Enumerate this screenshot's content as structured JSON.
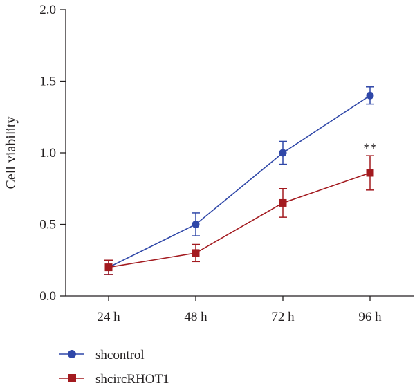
{
  "chart_data": {
    "type": "line",
    "title": "",
    "xlabel": "",
    "ylabel": "Cell viability",
    "categories": [
      "24 h",
      "48 h",
      "72 h",
      "96 h"
    ],
    "ylim": [
      0,
      2.0
    ],
    "yticks": [
      0.0,
      0.5,
      1.0,
      1.5,
      2.0
    ],
    "ytick_labels": [
      "0.0",
      "0.5",
      "1.0",
      "1.5",
      "2.0"
    ],
    "grid": false,
    "legend_position": "bottom-left",
    "series": [
      {
        "name": "shcontrol",
        "marker": "circle",
        "color": "#2f47a8",
        "values": [
          0.2,
          0.5,
          1.0,
          1.4
        ],
        "errors": [
          0.05,
          0.08,
          0.08,
          0.06
        ]
      },
      {
        "name": "shcircRHOT1",
        "marker": "square",
        "color": "#a31a1f",
        "values": [
          0.2,
          0.3,
          0.65,
          0.86
        ],
        "errors": [
          0.05,
          0.06,
          0.1,
          0.12
        ]
      }
    ],
    "annotations": [
      {
        "text": "**",
        "category": "96 h",
        "y": 1.05
      }
    ]
  }
}
